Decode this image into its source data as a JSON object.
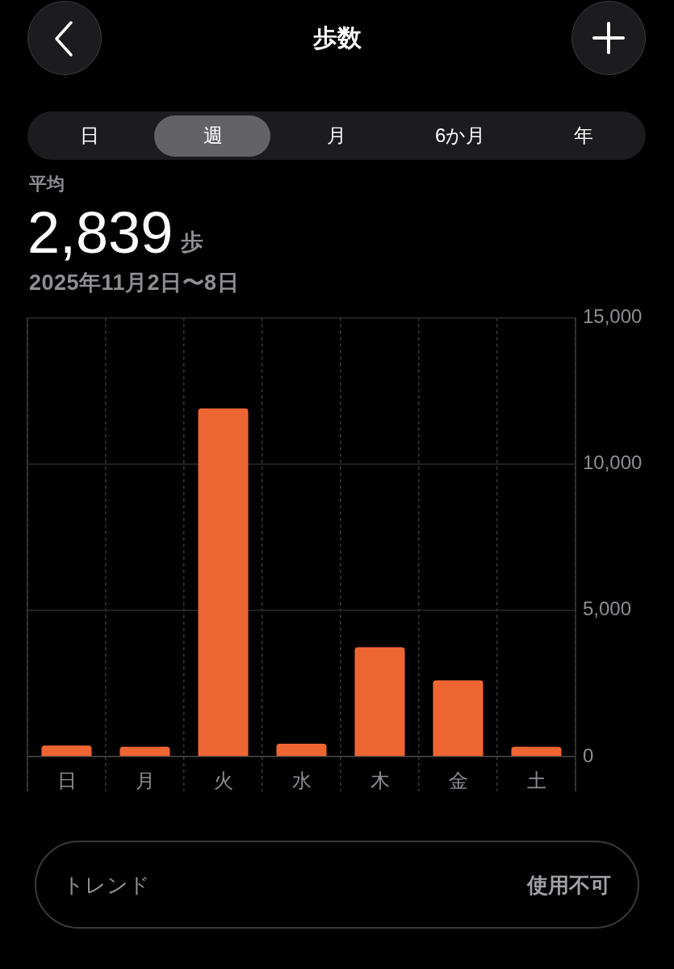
{
  "chart_data": {
    "type": "bar",
    "title": "歩数",
    "subtitle": "2025年11月2日〜8日",
    "categories": [
      "日",
      "月",
      "火",
      "水",
      "木",
      "金",
      "土"
    ],
    "values": [
      380,
      340,
      11900,
      440,
      3740,
      2610,
      340
    ],
    "color": "#ee6534",
    "ylim": [
      0,
      15000
    ],
    "yticks": [
      0,
      {
        "value": 5000,
        "label": "5,000"
      },
      {
        "value": 10000,
        "label": "10,000"
      },
      {
        "value": 15000,
        "label": "15,000"
      }
    ],
    "grid": true,
    "annotations": [
      "日",
      "週",
      "月",
      "6か月",
      "年",
      "平均",
      "2,839",
      "歩",
      "トレンド",
      "使用不可"
    ]
  }
}
